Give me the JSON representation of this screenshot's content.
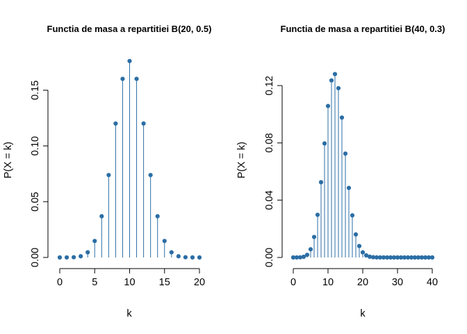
{
  "chart_data": [
    {
      "type": "stem",
      "title": "Functia de masa a repartitiei B(20, 0.5)",
      "xlabel": "k",
      "ylabel": "P(X = k)",
      "color": "#2b6ea5",
      "xlim": [
        0,
        20
      ],
      "ylim": [
        0,
        0.176
      ],
      "xticks": [
        0,
        5,
        10,
        15,
        20
      ],
      "yticks": [
        0,
        0.05,
        0.1,
        0.15
      ],
      "ytick_labels": [
        "0.00",
        "0.05",
        "0.10",
        "0.15"
      ],
      "x": [
        0,
        1,
        2,
        3,
        4,
        5,
        6,
        7,
        8,
        9,
        10,
        11,
        12,
        13,
        14,
        15,
        16,
        17,
        18,
        19,
        20
      ],
      "values": [
        1e-06,
        1.9e-05,
        0.000181,
        0.001087,
        0.004621,
        0.014786,
        0.036964,
        0.073929,
        0.120134,
        0.160179,
        0.176197,
        0.160179,
        0.120134,
        0.073929,
        0.036964,
        0.014786,
        0.004621,
        0.001087,
        0.000181,
        1.9e-05,
        1e-06
      ]
    },
    {
      "type": "stem",
      "title": "Functia de masa a repartitiei B(40, 0.3)",
      "xlabel": "k",
      "ylabel": "P(X = k)",
      "color": "#2b6ea5",
      "xlim": [
        0,
        40
      ],
      "ylim": [
        0,
        0.137
      ],
      "xticks": [
        0,
        10,
        20,
        30,
        40
      ],
      "yticks": [
        0,
        0.04,
        0.08,
        0.12
      ],
      "ytick_labels": [
        "0.00",
        "0.04",
        "0.08",
        "0.12"
      ],
      "x": [
        0,
        1,
        2,
        3,
        4,
        5,
        6,
        7,
        8,
        9,
        10,
        11,
        12,
        13,
        14,
        15,
        16,
        17,
        18,
        19,
        20,
        21,
        22,
        23,
        24,
        25,
        26,
        27,
        28,
        29,
        30,
        31,
        32,
        33,
        34,
        35,
        36,
        37,
        38,
        39,
        40
      ],
      "values": [
        6e-07,
        1.03e-05,
        8.62e-05,
        0.0004678,
        0.0018544,
        0.0057221,
        0.0143052,
        0.0297638,
        0.0525271,
        0.0796079,
        0.1057406,
        0.1236085,
        0.1280376,
        0.1181893,
        0.0976608,
        0.0725053,
        0.0485556,
        0.0293796,
        0.0160856,
        0.0079662,
        0.0035656,
        0.0014432,
        0.0005294,
        0.0001744,
        5.14e-05,
        1.35e-05,
        3e-06,
        6e-07,
        1e-07,
        0,
        0,
        0,
        0,
        0,
        0,
        0,
        0,
        0,
        0,
        0,
        0
      ]
    }
  ]
}
